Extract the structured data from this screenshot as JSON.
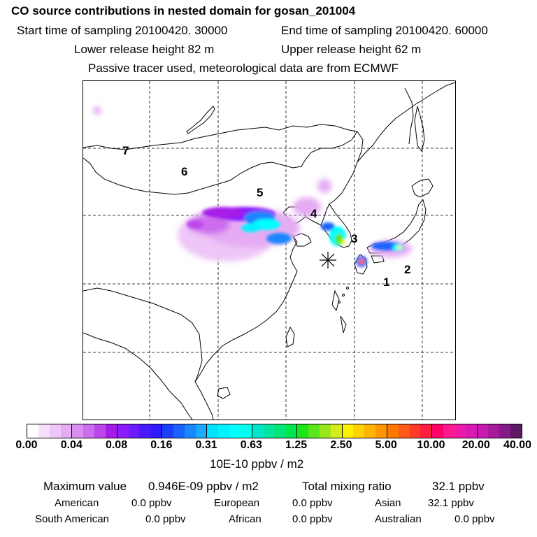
{
  "header": {
    "title": "CO  source contributions in nested domain for gosan_201004",
    "start_label": "Start time of sampling 20100420. 30000",
    "end_label": "End time of sampling 20100420. 60000",
    "lower_label": "Lower release height   82 m",
    "upper_label": "Upper release height   62 m",
    "tracer_label": "Passive tracer used, meteorological data are from ECMWF"
  },
  "map": {
    "region_labels": [
      "7",
      "6",
      "5",
      "4",
      "3",
      "2",
      "1"
    ],
    "receptor_marker": "asterisk-marker"
  },
  "colorbar": {
    "tick_labels": [
      "0.00",
      "0.04",
      "0.08",
      "0.16",
      "0.31",
      "0.63",
      "1.25",
      "2.50",
      "5.00",
      "10.00",
      "20.00",
      "40.00"
    ],
    "unit_label": "10E-10 ppbv / m2",
    "colors": [
      [
        "#ffffff",
        "#f6e0fb",
        "#eec6f7",
        "#e5acf3"
      ],
      [
        "#d98ff0",
        "#cc6cee",
        "#bb47ec",
        "#a61ae8"
      ],
      [
        "#8a1bff",
        "#6a1bff",
        "#4b1bff",
        "#2f1bff"
      ],
      [
        "#1a3fff",
        "#1a62ff",
        "#1a86ff",
        "#1aaaff"
      ],
      [
        "#00e1ff",
        "#00f2ff",
        "#00ffff",
        "#00ffee"
      ],
      [
        "#00e5c8",
        "#00e6a0",
        "#00e67a",
        "#00e64c"
      ],
      [
        "#1ae61a",
        "#5ae61a",
        "#9ae61a",
        "#d4ec1a"
      ],
      [
        "#fff000",
        "#ffd200",
        "#ffb400",
        "#ff9600"
      ],
      [
        "#ff7800",
        "#ff5a1a",
        "#ff3c28",
        "#ff1e40"
      ],
      [
        "#ff0066",
        "#ff1a90",
        "#f01aa8",
        "#d81ab4"
      ],
      [
        "#c81ab0",
        "#a61a9c",
        "#841a88",
        "#5e1a66"
      ]
    ]
  },
  "summary": {
    "max_label": "Maximum value",
    "max_value": "0.946E-09 ppbv / m2",
    "total_label": "Total mixing ratio",
    "total_value": "32.1 ppbv",
    "american_label": "American",
    "american_value": "0.0 ppbv",
    "european_label": "European",
    "european_value": "0.0 ppbv",
    "asian_label": "Asian",
    "asian_value": "32.1 ppbv",
    "south_american_label": "South American",
    "south_american_value": "0.0 ppbv",
    "african_label": "African",
    "african_value": "0.0 ppbv",
    "australian_label": "Australian",
    "australian_value": "0.0 ppbv"
  }
}
